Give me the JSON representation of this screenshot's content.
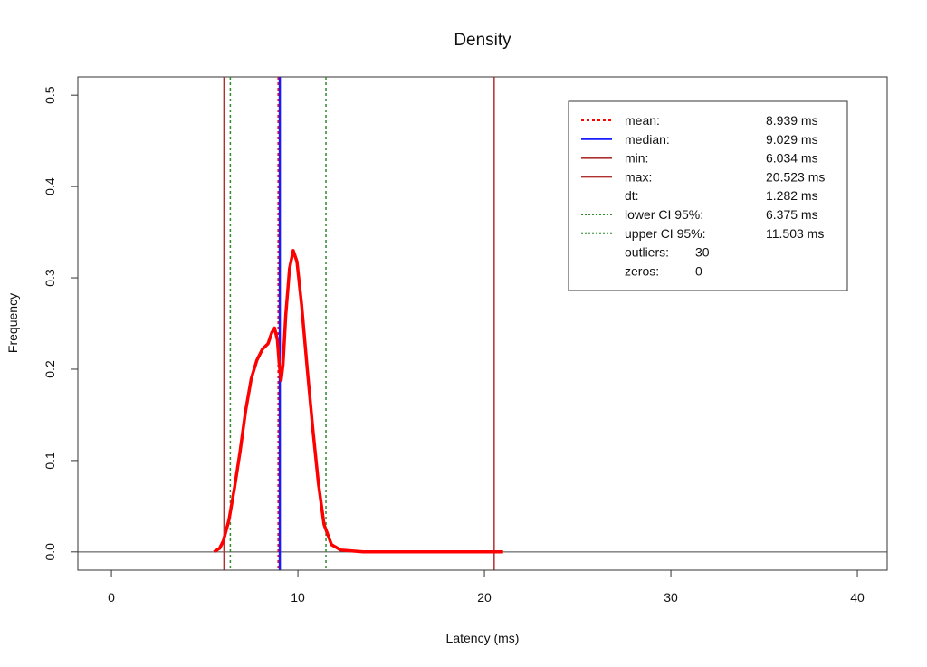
{
  "chart_data": {
    "type": "line",
    "title": "Density",
    "xlabel": "Latency (ms)",
    "ylabel": "Frequency",
    "xlim": [
      -1.8,
      41.6
    ],
    "ylim": [
      -0.02,
      0.52
    ],
    "x_ticks": [
      0,
      10,
      20,
      30,
      40
    ],
    "y_ticks": [
      0.0,
      0.1,
      0.2,
      0.3,
      0.4,
      0.5
    ],
    "x_tick_labels": [
      "0",
      "10",
      "20",
      "30",
      "40"
    ],
    "y_tick_labels": [
      "0.0",
      "0.1",
      "0.2",
      "0.3",
      "0.4",
      "0.5"
    ],
    "grid": false,
    "series": [
      {
        "color": "#ff0000",
        "points": [
          [
            5.5,
            0.0
          ],
          [
            5.8,
            0.004
          ],
          [
            6.0,
            0.012
          ],
          [
            6.3,
            0.035
          ],
          [
            6.6,
            0.07
          ],
          [
            6.9,
            0.11
          ],
          [
            7.2,
            0.155
          ],
          [
            7.5,
            0.19
          ],
          [
            7.8,
            0.21
          ],
          [
            8.1,
            0.222
          ],
          [
            8.4,
            0.228
          ],
          [
            8.6,
            0.24
          ],
          [
            8.75,
            0.245
          ],
          [
            8.9,
            0.232
          ],
          [
            9.0,
            0.205
          ],
          [
            9.1,
            0.188
          ],
          [
            9.2,
            0.205
          ],
          [
            9.35,
            0.26
          ],
          [
            9.55,
            0.31
          ],
          [
            9.75,
            0.33
          ],
          [
            9.95,
            0.318
          ],
          [
            10.2,
            0.27
          ],
          [
            10.5,
            0.2
          ],
          [
            10.8,
            0.135
          ],
          [
            11.1,
            0.075
          ],
          [
            11.4,
            0.03
          ],
          [
            11.8,
            0.008
          ],
          [
            12.3,
            0.002
          ],
          [
            13.5,
            0.0
          ],
          [
            21.0,
            0.0
          ]
        ]
      }
    ],
    "vertical_lines": [
      {
        "label": "mean:",
        "value": 8.939,
        "color": "#ff0000",
        "style": "dotted"
      },
      {
        "label": "median:",
        "value": 9.029,
        "color": "#1a1aff",
        "style": "solid"
      },
      {
        "label": "min:",
        "value": 6.034,
        "color": "#b03030",
        "style": "solid"
      },
      {
        "label": "max:",
        "value": 20.523,
        "color": "#b03030",
        "style": "solid"
      },
      {
        "label": "lower CI 95%:",
        "value": 6.375,
        "color": "#2e8b2e",
        "style": "dotted"
      },
      {
        "label": "upper CI 95%:",
        "value": 11.503,
        "color": "#2e8b2e",
        "style": "dotted"
      }
    ],
    "legend": {
      "position": "top-right",
      "entries": [
        {
          "label": "mean:",
          "value": "8.939 ms",
          "color": "#ff0000",
          "dash": "3 3"
        },
        {
          "label": "median:",
          "value": "9.029 ms",
          "color": "#1a1aff",
          "dash": ""
        },
        {
          "label": "min:",
          "value": "6.034 ms",
          "color": "#b03030",
          "dash": ""
        },
        {
          "label": "max:",
          "value": "20.523 ms",
          "color": "#b03030",
          "dash": ""
        },
        {
          "label": "dt:",
          "value": "1.282 ms",
          "color": "",
          "dash": ""
        },
        {
          "label": "lower CI 95%:",
          "value": "6.375 ms",
          "color": "#2e8b2e",
          "dash": "2 2"
        },
        {
          "label": "upper CI 95%:",
          "value": "11.503 ms",
          "color": "#2e8b2e",
          "dash": "2 2"
        },
        {
          "label": "outliers:",
          "value": "30",
          "color": "",
          "dash": ""
        },
        {
          "label": "zeros:",
          "value": "0",
          "color": "",
          "dash": ""
        }
      ]
    }
  }
}
